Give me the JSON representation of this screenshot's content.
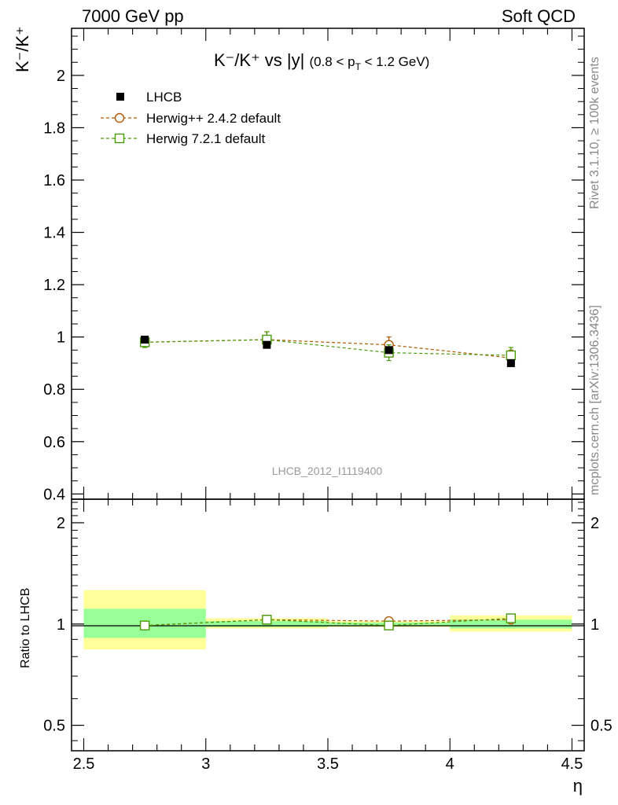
{
  "header": {
    "left": "7000 GeV pp",
    "right": "Soft QCD"
  },
  "side_labels": {
    "rivet": "Rivet 3.1.10, ≥ 100k events",
    "mcplots": "mcplots.cern.ch [arXiv:1306.3436]"
  },
  "main_plot": {
    "title_main": "K⁻/K⁺ vs |y|",
    "title_cut": "(0.8 < p",
    "title_cut_sub": "T",
    "title_cut_end": " < 1.2 GeV)",
    "ylabel": "K⁻/K⁺",
    "watermark": "LHCB_2012_I1119400"
  },
  "ratio_plot": {
    "ylabel": "Ratio to LHCB",
    "xlabel": "η"
  },
  "legend": [
    {
      "label": "LHCB",
      "color": "#000000",
      "marker": "filled-square"
    },
    {
      "label": "Herwig++ 2.4.2 default",
      "color": "#b35900",
      "marker": "open-circle"
    },
    {
      "label": "Herwig 7.2.1 default",
      "color": "#4a9a0a",
      "marker": "open-square"
    }
  ],
  "chart_data": {
    "type": "scatter",
    "x_edges": [
      2.5,
      3.0,
      3.5,
      4.0,
      4.5
    ],
    "x": [
      2.75,
      3.25,
      3.75,
      4.25
    ],
    "xlim": [
      2.45,
      4.55
    ],
    "xticks": [
      "2.5",
      "3",
      "3.5",
      "4",
      "4.5"
    ],
    "ylim": [
      0.38,
      2.18
    ],
    "yticks": [
      "0.4",
      "0.6",
      "0.8",
      "1",
      "1.2",
      "1.4",
      "1.6",
      "1.8",
      "2"
    ],
    "ratio_ylim": [
      0.42,
      2.35
    ],
    "ratio_yticks": [
      "0.5",
      "1",
      "2"
    ],
    "series": [
      {
        "name": "LHCB",
        "values": [
          0.99,
          0.97,
          0.95,
          0.9
        ],
        "errors": [
          0.01,
          0.01,
          0.01,
          0.01
        ]
      },
      {
        "name": "Herwig++ 2.4.2 default",
        "values": [
          0.98,
          0.99,
          0.97,
          0.92
        ],
        "errors": [
          0.02,
          0.03,
          0.03,
          0.03
        ]
      },
      {
        "name": "Herwig 7.2.1 default",
        "values": [
          0.98,
          0.99,
          0.94,
          0.93
        ],
        "errors": [
          0.02,
          0.03,
          0.03,
          0.03
        ]
      }
    ],
    "ratio_series": [
      {
        "name": "Herwig++ 2.4.2 default",
        "values": [
          0.99,
          1.03,
          1.02,
          1.03
        ]
      },
      {
        "name": "Herwig 7.2.1 default",
        "values": [
          0.99,
          1.03,
          0.99,
          1.04
        ]
      }
    ],
    "ratio_bands": {
      "inner": [
        [
          0.91,
          1.11
        ],
        [
          0.98,
          1.02
        ],
        [
          0.99,
          1.01
        ],
        [
          0.97,
          1.03
        ]
      ],
      "outer": [
        [
          0.84,
          1.26
        ],
        [
          0.97,
          1.04
        ],
        [
          0.98,
          1.02
        ],
        [
          0.95,
          1.06
        ]
      ]
    }
  }
}
